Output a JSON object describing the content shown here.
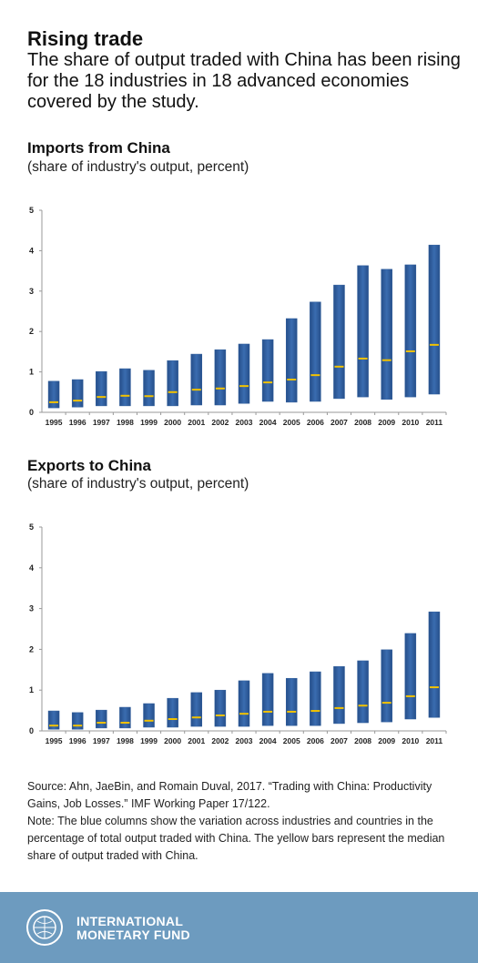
{
  "header": {
    "title": "Rising trade",
    "subtitle": "The share of output traded with China has been rising for the 18 industries in 18 advanced economies covered by the study."
  },
  "chart_data": [
    {
      "type": "floating-bar",
      "title": "Imports from China",
      "subtitle": "(share of industry's output, percent)",
      "categories": [
        "1995",
        "1996",
        "1997",
        "1998",
        "1999",
        "2000",
        "2001",
        "2002",
        "2003",
        "2004",
        "2005",
        "2006",
        "2007",
        "2008",
        "2009",
        "2010",
        "2011"
      ],
      "low": [
        0.11,
        0.13,
        0.16,
        0.16,
        0.16,
        0.16,
        0.18,
        0.18,
        0.22,
        0.27,
        0.25,
        0.27,
        0.34,
        0.38,
        0.32,
        0.38,
        0.45
      ],
      "high": [
        0.77,
        0.81,
        1.01,
        1.08,
        1.04,
        1.28,
        1.44,
        1.55,
        1.69,
        1.8,
        2.32,
        2.73,
        3.15,
        3.63,
        3.54,
        3.65,
        4.14
      ],
      "median": [
        0.25,
        0.29,
        0.38,
        0.41,
        0.4,
        0.5,
        0.56,
        0.59,
        0.65,
        0.74,
        0.81,
        0.92,
        1.13,
        1.33,
        1.29,
        1.51,
        1.67
      ],
      "color": "#2f5d9b",
      "median_color": "#f2c200",
      "ylim": [
        0,
        5
      ],
      "yticks": [
        0,
        1,
        2,
        3,
        4,
        5
      ]
    },
    {
      "type": "floating-bar",
      "title": "Exports to China",
      "subtitle": "(share of industry's output, percent)",
      "categories": [
        "1995",
        "1996",
        "1997",
        "1998",
        "1999",
        "2000",
        "2001",
        "2002",
        "2003",
        "2004",
        "2005",
        "2006",
        "2007",
        "2008",
        "2009",
        "2010",
        "2011"
      ],
      "low": [
        0.04,
        0.04,
        0.07,
        0.07,
        0.09,
        0.09,
        0.11,
        0.11,
        0.11,
        0.13,
        0.13,
        0.13,
        0.18,
        0.2,
        0.22,
        0.29,
        0.33
      ],
      "high": [
        0.49,
        0.45,
        0.51,
        0.58,
        0.67,
        0.8,
        0.94,
        1.0,
        1.23,
        1.41,
        1.29,
        1.45,
        1.58,
        1.72,
        1.99,
        2.39,
        2.92
      ],
      "median": [
        0.13,
        0.13,
        0.2,
        0.2,
        0.25,
        0.29,
        0.33,
        0.38,
        0.42,
        0.47,
        0.47,
        0.49,
        0.56,
        0.62,
        0.69,
        0.85,
        1.07
      ],
      "color": "#2f5d9b",
      "median_color": "#f2c200",
      "ylim": [
        0,
        5
      ],
      "yticks": [
        0,
        1,
        2,
        3,
        4,
        5
      ]
    }
  ],
  "notes": {
    "source": "Source: Ahn, JaeBin, and Romain Duval, 2017. “Trading with China: Productivity Gains, Job Losses.” IMF Working Paper 17/122.",
    "note": "Note: The blue columns show the variation across industries and countries in the percentage of total output traded with China. The yellow bars represent the median share of output traded with China."
  },
  "footer": {
    "line1": "INTERNATIONAL",
    "line2": "MONETARY FUND"
  }
}
